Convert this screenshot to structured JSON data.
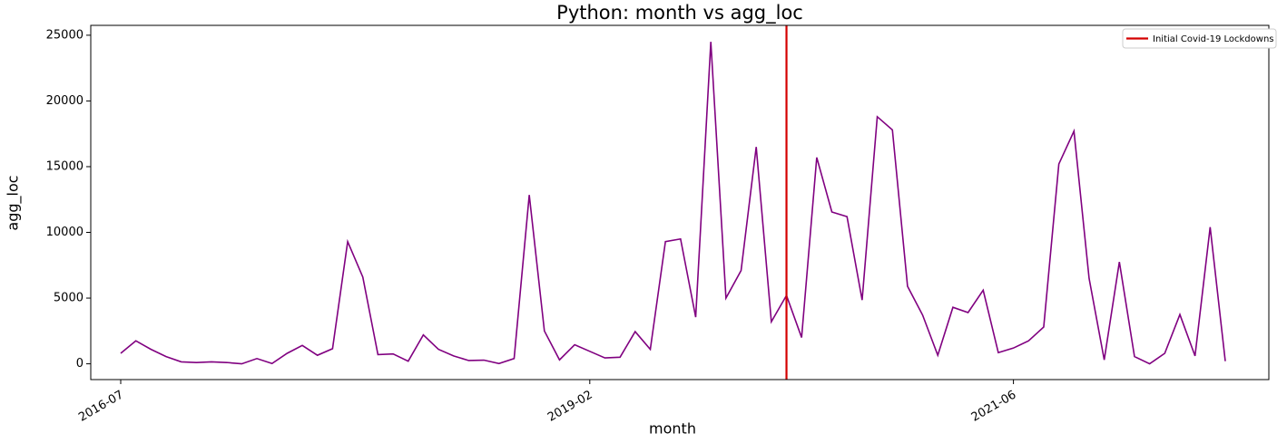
{
  "chart_data": {
    "type": "line",
    "title": "Python: month vs agg_loc",
    "x_label": "month",
    "y_label": "agg_loc",
    "categories": [
      "2016-07",
      null,
      null,
      null,
      null,
      null,
      null,
      null,
      null,
      null,
      null,
      null,
      null,
      null,
      null,
      null,
      null,
      null,
      null,
      null,
      null,
      null,
      null,
      null,
      null,
      null,
      null,
      null,
      null,
      null,
      null,
      "2019-02",
      null,
      null,
      null,
      null,
      null,
      null,
      null,
      null,
      null,
      null,
      null,
      null,
      null,
      null,
      null,
      null,
      null,
      null,
      null,
      null,
      null,
      null,
      null,
      null,
      null,
      null,
      null,
      "2021-06",
      null,
      null,
      null,
      null,
      null,
      null,
      null,
      null,
      null,
      null,
      null,
      null,
      null,
      null
    ],
    "series": [
      {
        "name": "agg_loc",
        "color": "#800080",
        "values": [
          800,
          1750,
          1100,
          550,
          150,
          100,
          150,
          100,
          0,
          400,
          20,
          800,
          1400,
          650,
          1150,
          9300,
          6600,
          700,
          750,
          200,
          2200,
          1100,
          600,
          250,
          280,
          20,
          400,
          12850,
          2500,
          300,
          1450,
          950,
          450,
          500,
          2450,
          1100,
          9300,
          9500,
          3550,
          24500,
          5000,
          7100,
          16500,
          3200,
          5200,
          2000,
          15700,
          11550,
          11200,
          4850,
          18800,
          17800,
          5900,
          3700,
          650,
          4300,
          3900,
          5600,
          850,
          1200,
          1750,
          2800,
          15200,
          17700,
          6500,
          300,
          7750,
          550,
          0,
          800,
          3750,
          600,
          10400,
          200
        ]
      }
    ],
    "vline": {
      "label": "Initial Covid-19 Lockdowns",
      "x_index": 44,
      "color": "#d40000"
    },
    "ylim": [
      -1200,
      25750
    ],
    "yticks": [
      0,
      5000,
      10000,
      15000,
      20000,
      25000
    ],
    "grid": false,
    "legend_position": "upper right"
  }
}
